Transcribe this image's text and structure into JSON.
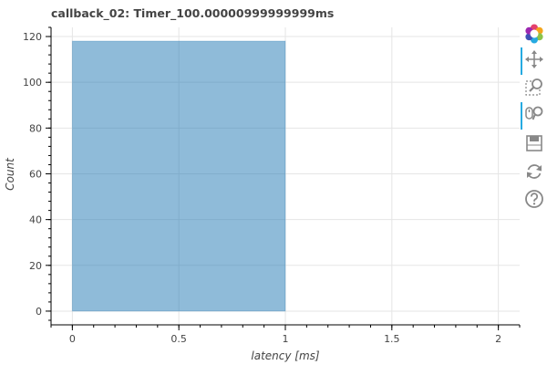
{
  "chart_data": {
    "type": "bar",
    "title": "callback_02: Timer_100.00000999999999ms",
    "xlabel": "latency [ms]",
    "ylabel": "Count",
    "xlim": [
      -0.1,
      2.1
    ],
    "ylim": [
      -6,
      124
    ],
    "xticks": [
      0,
      0.5,
      1,
      1.5,
      2
    ],
    "xtick_labels": [
      "0",
      "0.5",
      "1",
      "1.5",
      "2"
    ],
    "yticks": [
      0,
      20,
      40,
      60,
      80,
      100,
      120
    ],
    "ytick_labels": [
      "0",
      "20",
      "40",
      "60",
      "80",
      "100",
      "120"
    ],
    "grid": true,
    "bars": [
      {
        "x0": 0,
        "x1": 1,
        "value": 118
      }
    ],
    "bar_color": "#1f77b4",
    "bar_alpha": 0.5
  },
  "toolbar": {
    "tools": [
      {
        "name": "bokeh-logo-icon",
        "interactable": false,
        "active": false
      },
      {
        "name": "pan-tool-icon",
        "interactable": true,
        "active": true
      },
      {
        "name": "box-zoom-tool-icon",
        "interactable": true,
        "active": false
      },
      {
        "name": "wheel-zoom-tool-icon",
        "interactable": true,
        "active": true
      },
      {
        "name": "save-tool-icon",
        "interactable": true,
        "active": false
      },
      {
        "name": "reset-tool-icon",
        "interactable": true,
        "active": false
      },
      {
        "name": "help-tool-icon",
        "interactable": true,
        "active": false
      }
    ]
  }
}
